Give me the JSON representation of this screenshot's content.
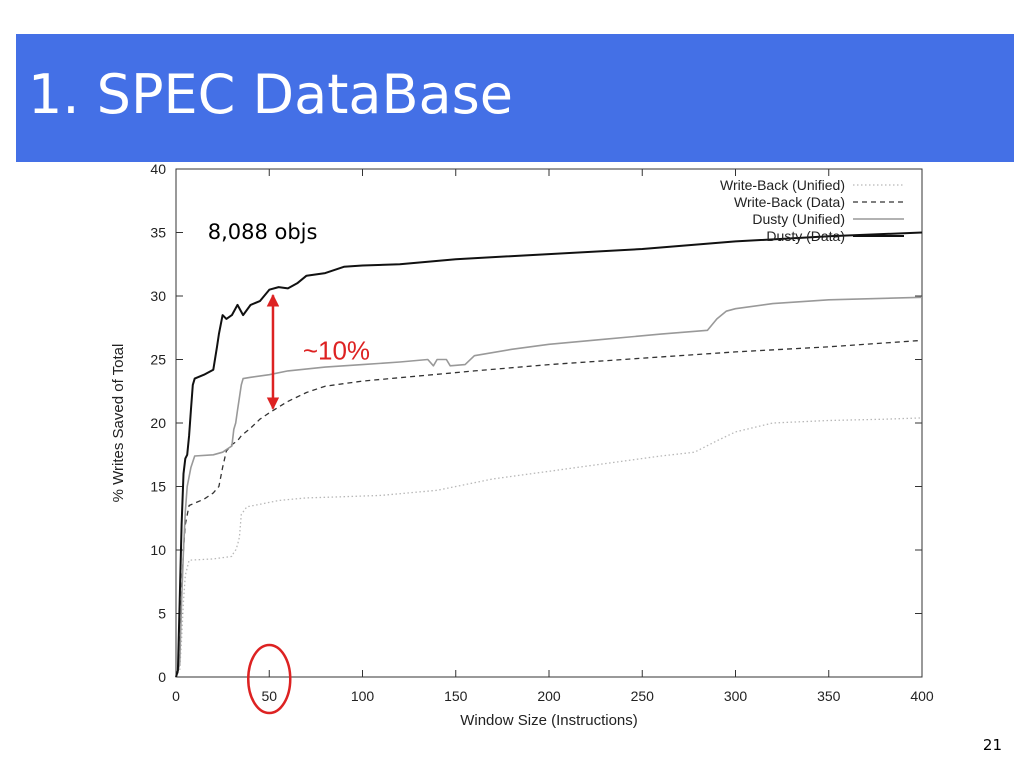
{
  "slide": {
    "title": "1. SPEC DataBase",
    "page_number": "21",
    "title_bar_color": "#4470e6"
  },
  "chart_data": {
    "type": "line",
    "title": "",
    "xlabel": "Window Size (Instructions)",
    "ylabel": "% Writes Saved of Total",
    "xlim": [
      0,
      400
    ],
    "ylim": [
      0,
      40
    ],
    "xticks": [
      0,
      50,
      100,
      150,
      200,
      250,
      300,
      350,
      400
    ],
    "yticks": [
      0,
      5,
      10,
      15,
      20,
      25,
      30,
      35,
      40
    ],
    "grid": false,
    "legend": "top-right",
    "series": [
      {
        "name": "Write-Back (Unified)",
        "style": "dotted",
        "color": "#b8b8b8",
        "points": [
          [
            0,
            0
          ],
          [
            1,
            0.3
          ],
          [
            2,
            0.5
          ],
          [
            3,
            3
          ],
          [
            4,
            6
          ],
          [
            5,
            8
          ],
          [
            7,
            9.2
          ],
          [
            20,
            9.3
          ],
          [
            30,
            9.5
          ],
          [
            31,
            9.8
          ],
          [
            32,
            10
          ],
          [
            33,
            10.4
          ],
          [
            34,
            11
          ],
          [
            35,
            12.8
          ],
          [
            38,
            13.4
          ],
          [
            45,
            13.6
          ],
          [
            55,
            13.9
          ],
          [
            70,
            14.1
          ],
          [
            90,
            14.2
          ],
          [
            110,
            14.3
          ],
          [
            140,
            14.7
          ],
          [
            150,
            15
          ],
          [
            170,
            15.6
          ],
          [
            200,
            16.2
          ],
          [
            230,
            16.8
          ],
          [
            260,
            17.4
          ],
          [
            278,
            17.7
          ],
          [
            290,
            18.6
          ],
          [
            300,
            19.3
          ],
          [
            320,
            20
          ],
          [
            350,
            20.2
          ],
          [
            380,
            20.3
          ],
          [
            400,
            20.4
          ]
        ]
      },
      {
        "name": "Write-Back (Data)",
        "style": "dashed",
        "color": "#333333",
        "points": [
          [
            0,
            0
          ],
          [
            1,
            0.5
          ],
          [
            2,
            2
          ],
          [
            3,
            7
          ],
          [
            4,
            10
          ],
          [
            5,
            12
          ],
          [
            7,
            13.5
          ],
          [
            15,
            14
          ],
          [
            20,
            14.5
          ],
          [
            23,
            15
          ],
          [
            25,
            16.5
          ],
          [
            27,
            17.8
          ],
          [
            30,
            18.3
          ],
          [
            33,
            18.6
          ],
          [
            35,
            19
          ],
          [
            40,
            19.6
          ],
          [
            45,
            20.3
          ],
          [
            50,
            20.8
          ],
          [
            60,
            21.7
          ],
          [
            70,
            22.4
          ],
          [
            80,
            22.9
          ],
          [
            100,
            23.3
          ],
          [
            130,
            23.7
          ],
          [
            160,
            24.1
          ],
          [
            200,
            24.6
          ],
          [
            250,
            25.1
          ],
          [
            300,
            25.6
          ],
          [
            350,
            26
          ],
          [
            400,
            26.5
          ]
        ]
      },
      {
        "name": "Dusty (Unified)",
        "style": "solid",
        "color": "#999999",
        "points": [
          [
            0,
            0
          ],
          [
            2,
            1
          ],
          [
            3,
            6
          ],
          [
            4,
            10
          ],
          [
            5,
            13
          ],
          [
            6,
            15
          ],
          [
            8,
            16.5
          ],
          [
            10,
            17.4
          ],
          [
            20,
            17.5
          ],
          [
            25,
            17.7
          ],
          [
            28,
            18
          ],
          [
            30,
            18.2
          ],
          [
            31,
            19.5
          ],
          [
            32,
            20
          ],
          [
            33,
            21
          ],
          [
            34,
            22
          ],
          [
            35,
            23
          ],
          [
            36,
            23.5
          ],
          [
            40,
            23.6
          ],
          [
            50,
            23.8
          ],
          [
            60,
            24.1
          ],
          [
            80,
            24.4
          ],
          [
            100,
            24.6
          ],
          [
            120,
            24.8
          ],
          [
            135,
            25
          ],
          [
            138,
            24.5
          ],
          [
            140,
            25
          ],
          [
            145,
            25
          ],
          [
            147,
            24.5
          ],
          [
            155,
            24.6
          ],
          [
            160,
            25.3
          ],
          [
            180,
            25.8
          ],
          [
            200,
            26.2
          ],
          [
            230,
            26.6
          ],
          [
            260,
            27
          ],
          [
            285,
            27.3
          ],
          [
            290,
            28.2
          ],
          [
            295,
            28.8
          ],
          [
            300,
            29
          ],
          [
            320,
            29.4
          ],
          [
            350,
            29.7
          ],
          [
            400,
            29.9
          ]
        ]
      },
      {
        "name": "Dusty (Data)",
        "style": "solid",
        "color": "#111111",
        "points": [
          [
            0,
            0
          ],
          [
            1,
            0.5
          ],
          [
            2,
            6
          ],
          [
            3,
            12
          ],
          [
            4,
            16
          ],
          [
            5,
            17.2
          ],
          [
            6,
            17.5
          ],
          [
            7,
            19
          ],
          [
            8,
            21
          ],
          [
            9,
            23
          ],
          [
            10,
            23.5
          ],
          [
            15,
            23.8
          ],
          [
            20,
            24.2
          ],
          [
            22,
            26
          ],
          [
            23,
            27
          ],
          [
            25,
            28.5
          ],
          [
            27,
            28.2
          ],
          [
            30,
            28.5
          ],
          [
            33,
            29.3
          ],
          [
            36,
            28.5
          ],
          [
            40,
            29.3
          ],
          [
            45,
            29.6
          ],
          [
            50,
            30.5
          ],
          [
            55,
            30.7
          ],
          [
            60,
            30.6
          ],
          [
            65,
            31
          ],
          [
            70,
            31.6
          ],
          [
            80,
            31.8
          ],
          [
            90,
            32.3
          ],
          [
            100,
            32.4
          ],
          [
            120,
            32.5
          ],
          [
            150,
            32.9
          ],
          [
            200,
            33.3
          ],
          [
            250,
            33.7
          ],
          [
            300,
            34.3
          ],
          [
            350,
            34.7
          ],
          [
            400,
            35
          ]
        ]
      }
    ],
    "annotations": [
      {
        "text": "8,088 objs",
        "x": 17,
        "y": 34.5,
        "color": "#000000"
      },
      {
        "text": "~10%",
        "x": 68,
        "y": 25,
        "color": "#dd2222"
      }
    ],
    "arrow": {
      "x": 52,
      "y_from": 30.3,
      "y_to": 20.9,
      "color": "#dd2222"
    },
    "highlight_circle": {
      "x": 50,
      "y": 0,
      "color": "#dd2222"
    }
  }
}
